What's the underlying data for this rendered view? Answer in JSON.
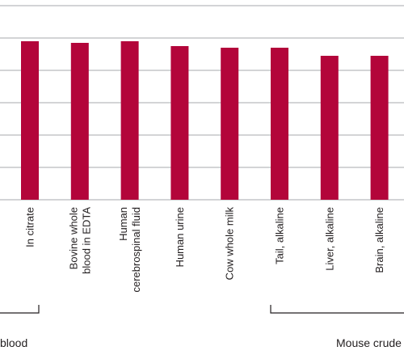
{
  "chart_data": {
    "type": "bar",
    "title": "",
    "xlabel": "",
    "ylabel": "",
    "ylim": [
      0,
      120
    ],
    "grid": true,
    "bar_color": "#b3053a",
    "categories": [
      "In citrate",
      "Bovine whole blood in EDTA",
      "Human cerebrospinal fluid",
      "Human urine",
      "Cow whole milk",
      "Tail, alkaline",
      "Liver, alkaline",
      "Brain, alkaline"
    ],
    "category_lines": [
      [
        "In citrate"
      ],
      [
        "Bovine whole",
        "blood in EDTA"
      ],
      [
        "Human",
        "cerebrospinal fluid"
      ],
      [
        "Human urine"
      ],
      [
        "Cow whole milk"
      ],
      [
        "Tail, alkaline"
      ],
      [
        "Liver, alkaline"
      ],
      [
        "Brain, alkaline"
      ]
    ],
    "values": [
      98,
      97,
      98,
      95,
      94,
      94,
      89,
      89
    ],
    "groups": [
      {
        "label": "blood"
      },
      {
        "label": "Mouse crude"
      }
    ]
  }
}
